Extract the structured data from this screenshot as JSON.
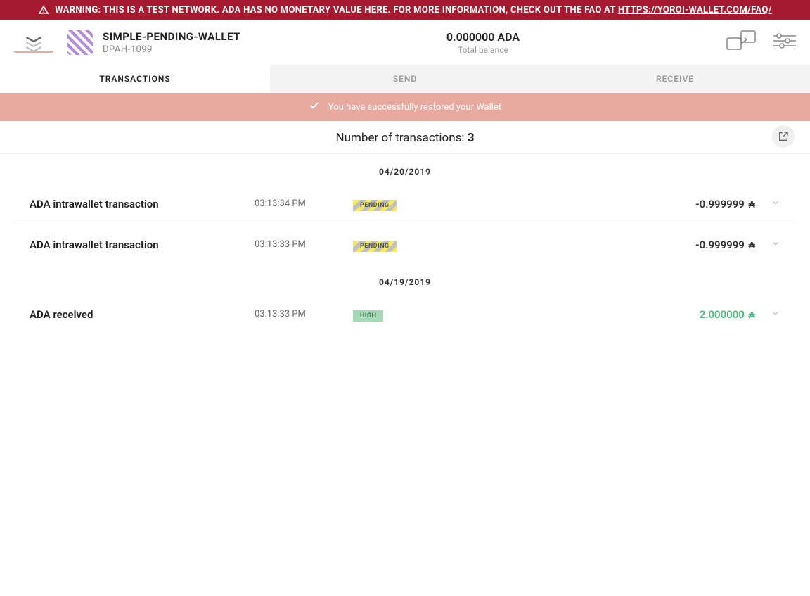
{
  "warning": {
    "prefix": "WARNING: THIS IS A TEST NETWORK. ADA HAS NO MONETARY VALUE HERE. FOR MORE INFORMATION, CHECK OUT THE FAQ AT ",
    "link_text": "HTTPS://YOROI-WALLET.COM/FAQ/"
  },
  "wallet": {
    "name": "SIMPLE-PENDING-WALLET",
    "subtitle": "DPAH-1099"
  },
  "balance": {
    "amount": "0.000000 ADA",
    "label": "Total balance"
  },
  "tabs": {
    "transactions": "TRANSACTIONS",
    "send": "SEND",
    "receive": "RECEIVE"
  },
  "success_message": "You have successfully restored your Wallet",
  "summary": {
    "prefix": "Number of transactions: ",
    "count": "3"
  },
  "groups": [
    {
      "date": "04/20/2019",
      "txs": [
        {
          "type": "ADA intrawallet transaction",
          "time": "03:13:34 PM",
          "status": "PENDING",
          "status_kind": "pending",
          "amount": "-0.999999",
          "amount_kind": "neg"
        },
        {
          "type": "ADA intrawallet transaction",
          "time": "03:13:33 PM",
          "status": "PENDING",
          "status_kind": "pending",
          "amount": "-0.999999",
          "amount_kind": "neg"
        }
      ]
    },
    {
      "date": "04/19/2019",
      "txs": [
        {
          "type": "ADA received",
          "time": "03:13:33 PM",
          "status": "HIGH",
          "status_kind": "high",
          "amount": "2.000000",
          "amount_kind": "pos"
        }
      ]
    }
  ],
  "colors": {
    "warning_bg": "#A7192F",
    "success_bg": "#E8A9A0",
    "positive": "#4ab87a",
    "high_badge": "#a7d9b8"
  }
}
